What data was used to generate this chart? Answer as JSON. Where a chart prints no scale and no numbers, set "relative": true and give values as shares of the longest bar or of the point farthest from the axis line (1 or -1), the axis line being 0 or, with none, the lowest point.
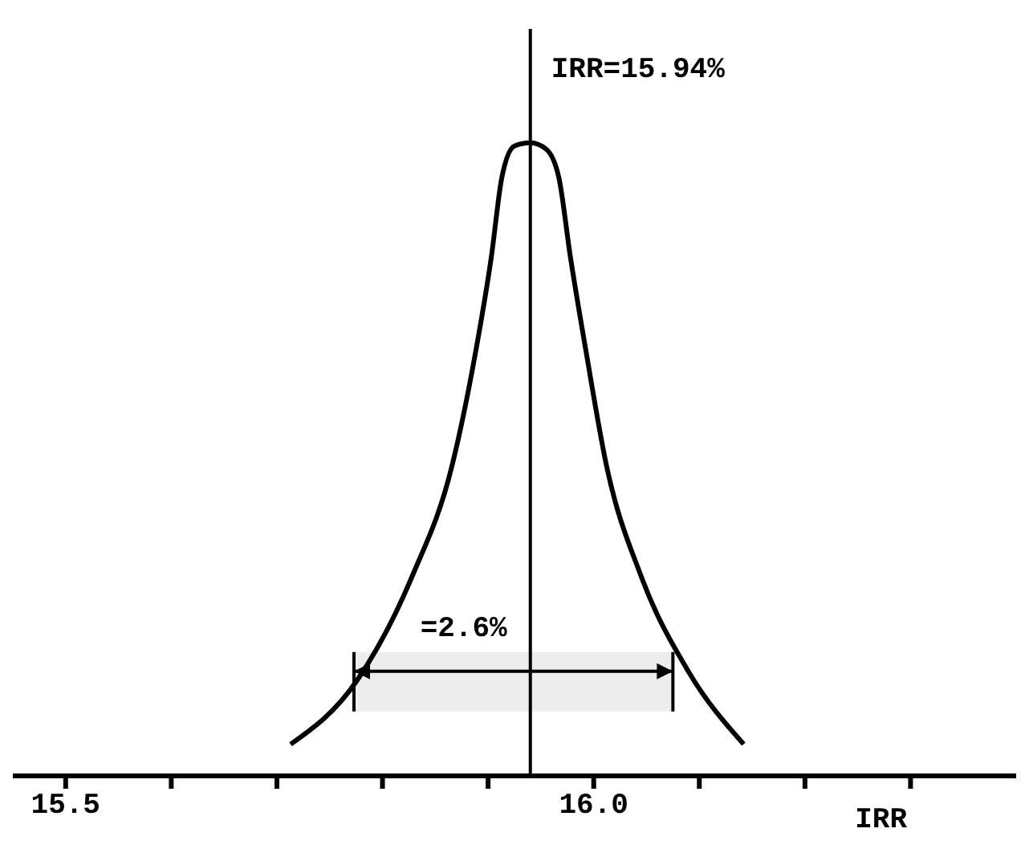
{
  "chart_data": {
    "type": "line",
    "relative": true,
    "xlabel": "IRR",
    "x": [
      15.713,
      15.776,
      15.828,
      15.866,
      15.888,
      15.903,
      15.913,
      15.925,
      15.94,
      15.955,
      15.967,
      15.978,
      15.993,
      16.012,
      16.045,
      16.09,
      16.142
    ],
    "series": [
      {
        "color": "#000000",
        "values": [
          0.05,
          0.151,
          0.315,
          0.491,
          0.668,
          0.819,
          0.945,
          0.995,
          1,
          0.99,
          0.945,
          0.819,
          0.668,
          0.491,
          0.315,
          0.164,
          0.05
        ]
      }
    ],
    "xlim": [
      15.45,
      16.4
    ],
    "xticks": [
      15.5,
      {
        "value": 15.6,
        "label": null
      },
      {
        "value": 15.7,
        "label": null
      },
      {
        "value": 15.8,
        "label": null
      },
      {
        "value": 15.9,
        "label": null
      },
      {
        "value": 16.0,
        "label": "16.0"
      },
      {
        "value": 16.1,
        "label": null
      },
      {
        "value": 16.2,
        "label": null
      },
      {
        "value": 16.3,
        "label": null
      }
    ],
    "ref_lines": [
      {
        "axis": "x",
        "value": 15.94,
        "label": "IRR=15.94%",
        "color": "#000000"
      }
    ],
    "bands": [
      {
        "axis": "x",
        "from": 15.773,
        "to": 16.075,
        "label": "=2.6%",
        "color": "#000000"
      }
    ],
    "grid": false,
    "legend": false,
    "marker": "none",
    "line_style": "solid"
  }
}
